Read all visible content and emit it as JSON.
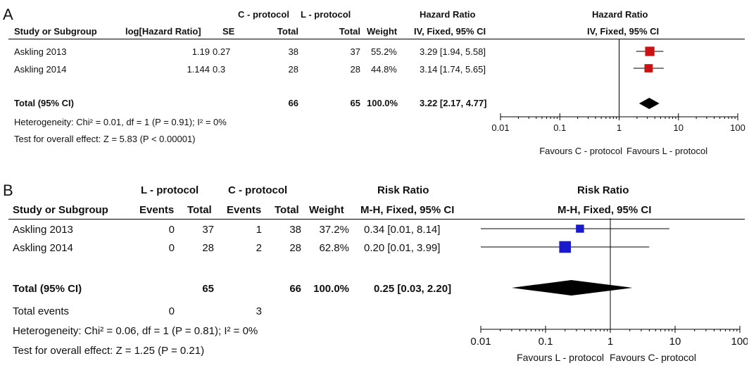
{
  "panelA": {
    "label": "A",
    "group_headers": {
      "c": "C - protocol",
      "l": "L - protocol",
      "effect": "Hazard Ratio",
      "plot": "Hazard Ratio"
    },
    "col_headers": {
      "study": "Study or Subgroup",
      "loghr": "log[Hazard Ratio]",
      "se": "SE",
      "c_total": "Total",
      "l_total": "Total",
      "weight": "Weight",
      "effect": "IV, Fixed, 95% CI",
      "plot": "IV, Fixed, 95% CI"
    },
    "rows": [
      {
        "study": "Askling 2013",
        "loghr": "1.19",
        "se": "0.27",
        "c_total": "38",
        "l_total": "37",
        "weight": "55.2%",
        "effect": "3.29 [1.94, 5.58]"
      },
      {
        "study": "Askling 2014",
        "loghr": "1.144",
        "se": "0.3",
        "c_total": "28",
        "l_total": "28",
        "weight": "44.8%",
        "effect": "3.14 [1.74, 5.65]"
      }
    ],
    "total": {
      "label": "Total (95% CI)",
      "c_total": "66",
      "l_total": "65",
      "weight": "100.0%",
      "effect": "3.22 [2.17, 4.77]"
    },
    "heterogeneity": "Heterogeneity: Chi² = 0.01, df = 1 (P = 0.91); I² = 0%",
    "overall": "Test for overall effect: Z = 5.83 (P < 0.00001)",
    "favours_left": "Favours C - protocol",
    "favours_right": "Favours L - protocol"
  },
  "panelB": {
    "label": "B",
    "group_headers": {
      "l": "L - protocol",
      "c": "C - protocol",
      "effect": "Risk Ratio",
      "plot": "Risk Ratio"
    },
    "col_headers": {
      "study": "Study or Subgroup",
      "l_events": "Events",
      "l_total": "Total",
      "c_events": "Events",
      "c_total": "Total",
      "weight": "Weight",
      "effect": "M-H, Fixed, 95% CI",
      "plot": "M-H, Fixed, 95% CI"
    },
    "rows": [
      {
        "study": "Askling 2013",
        "l_events": "0",
        "l_total": "37",
        "c_events": "1",
        "c_total": "38",
        "weight": "37.2%",
        "effect": "0.34 [0.01, 8.14]"
      },
      {
        "study": "Askling 2014",
        "l_events": "0",
        "l_total": "28",
        "c_events": "2",
        "c_total": "28",
        "weight": "62.8%",
        "effect": "0.20 [0.01, 3.99]"
      }
    ],
    "total": {
      "label": "Total (95% CI)",
      "l_total": "65",
      "c_total": "66",
      "weight": "100.0%",
      "effect": "0.25 [0.03, 2.20]"
    },
    "total_events": {
      "label": "Total events",
      "l": "0",
      "c": "3"
    },
    "heterogeneity": "Heterogeneity: Chi² = 0.06, df = 1 (P = 0.81); I² = 0%",
    "overall": "Test for overall effect: Z = 1.25 (P = 0.21)",
    "favours_left": "Favours L - protocol",
    "favours_right": "Favours C- protocol"
  },
  "chart_data": [
    {
      "type": "scatter",
      "title": "Hazard Ratio",
      "xscale": "log",
      "xlim": [
        0.01,
        100
      ],
      "xticks": [
        "0.01",
        "0.1",
        "1",
        "10",
        "100"
      ],
      "null_line": 1,
      "series": [
        {
          "name": "Askling 2013",
          "estimate": 3.29,
          "lower": 1.94,
          "upper": 5.58,
          "weight": 55.2
        },
        {
          "name": "Askling 2014",
          "estimate": 3.14,
          "lower": 1.74,
          "upper": 5.65,
          "weight": 44.8
        }
      ],
      "pooled": {
        "estimate": 3.22,
        "lower": 2.17,
        "upper": 4.77
      },
      "marker_color": "#cc1111",
      "pooled_color": "#000000"
    },
    {
      "type": "scatter",
      "title": "Risk Ratio",
      "xscale": "log",
      "xlim": [
        0.01,
        100
      ],
      "xticks": [
        "0.01",
        "0.1",
        "1",
        "10",
        "100"
      ],
      "null_line": 1,
      "series": [
        {
          "name": "Askling 2013",
          "estimate": 0.34,
          "lower": 0.01,
          "upper": 8.14,
          "weight": 37.2
        },
        {
          "name": "Askling 2014",
          "estimate": 0.2,
          "lower": 0.01,
          "upper": 3.99,
          "weight": 62.8
        }
      ],
      "pooled": {
        "estimate": 0.25,
        "lower": 0.03,
        "upper": 2.2
      },
      "marker_color": "#1a1acc",
      "pooled_color": "#000000"
    }
  ]
}
